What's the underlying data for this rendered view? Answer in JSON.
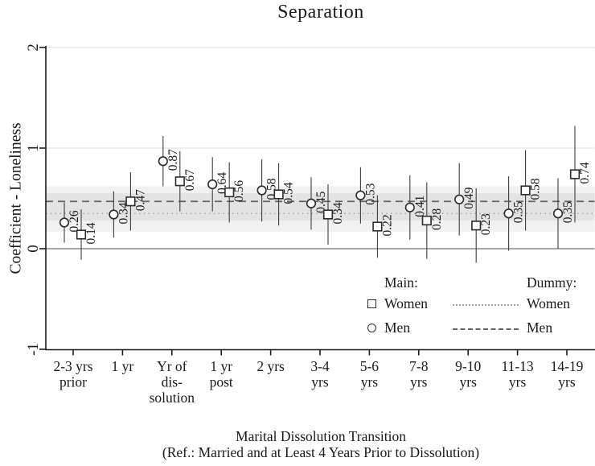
{
  "title": "Separation",
  "axes": {
    "y_label": "Coefficient - Loneliness",
    "x_label_line1": "Marital Dissolution Transition",
    "x_label_line2": "(Ref.: Married and at Least 4 Years Prior to Dissolution)"
  },
  "legend": {
    "main_header": "Main:",
    "dummy_header": "Dummy:",
    "main_women": "Women",
    "main_men": "Men",
    "dummy_women": "Women",
    "dummy_men": "Men"
  },
  "colors": {
    "text": "#1a1a1a",
    "axis": "#1a1a1a",
    "grid": "#dedede",
    "zero_line": "#707070",
    "error_bar": "#3d3d3d",
    "marker_stroke": "#2b2b2b",
    "marker_fill": "#ffffff",
    "dashed_line": "#636363",
    "dotted_line": "#9f9f9f",
    "band_fill": "#000000",
    "band_opacity": 0.055
  },
  "chart_data": {
    "type": "scatter",
    "title": "Separation",
    "ylabel": "Coefficient - Loneliness",
    "xlabel": "Marital Dissolution Transition (Ref.: Married and at Least 4 Years Prior to Dissolution)",
    "ylim": [
      -1,
      2
    ],
    "y_ticks": [
      -1,
      0,
      1,
      2
    ],
    "grid_values": [
      1,
      2
    ],
    "zero_line": 0,
    "legend_position": "inside bottom-right",
    "categories": [
      [
        "2-3 yrs",
        "prior"
      ],
      [
        "1 yr"
      ],
      [
        "Yr of",
        "dis-",
        "solution"
      ],
      [
        "1 yr",
        "post"
      ],
      [
        "2 yrs"
      ],
      [
        "3-4",
        "yrs"
      ],
      [
        "5-6",
        "yrs"
      ],
      [
        "7-8",
        "yrs"
      ],
      [
        "9-10",
        "yrs"
      ],
      [
        "11-13",
        "yrs"
      ],
      [
        "14-19",
        "yrs"
      ]
    ],
    "series": [
      {
        "name": "Men",
        "marker": "circle",
        "values": [
          0.26,
          0.34,
          0.87,
          0.64,
          0.58,
          0.45,
          0.53,
          0.41,
          0.49,
          0.35,
          0.35
        ],
        "ci_low": [
          0.06,
          0.11,
          0.62,
          0.37,
          0.27,
          0.19,
          0.25,
          0.09,
          0.13,
          -0.02,
          0.0
        ],
        "ci_high": [
          0.46,
          0.57,
          1.12,
          0.91,
          0.89,
          0.71,
          0.81,
          0.73,
          0.85,
          0.72,
          0.7
        ]
      },
      {
        "name": "Women",
        "marker": "square",
        "values": [
          0.14,
          0.47,
          0.67,
          0.56,
          0.54,
          0.34,
          0.22,
          0.28,
          0.23,
          0.58,
          0.74
        ],
        "ci_low": [
          -0.11,
          0.18,
          0.37,
          0.26,
          0.23,
          0.04,
          -0.09,
          -0.1,
          -0.14,
          0.18,
          0.26
        ],
        "ci_high": [
          0.39,
          0.76,
          0.97,
          0.86,
          0.85,
          0.64,
          0.53,
          0.66,
          0.6,
          0.98,
          1.22
        ]
      }
    ],
    "reference_lines": [
      {
        "name": "Dummy Men",
        "style": "dashed",
        "value": 0.47,
        "band": [
          0.28,
          0.62
        ]
      },
      {
        "name": "Dummy Women",
        "style": "dotted",
        "value": 0.35,
        "band": [
          0.17,
          0.55
        ]
      }
    ]
  }
}
